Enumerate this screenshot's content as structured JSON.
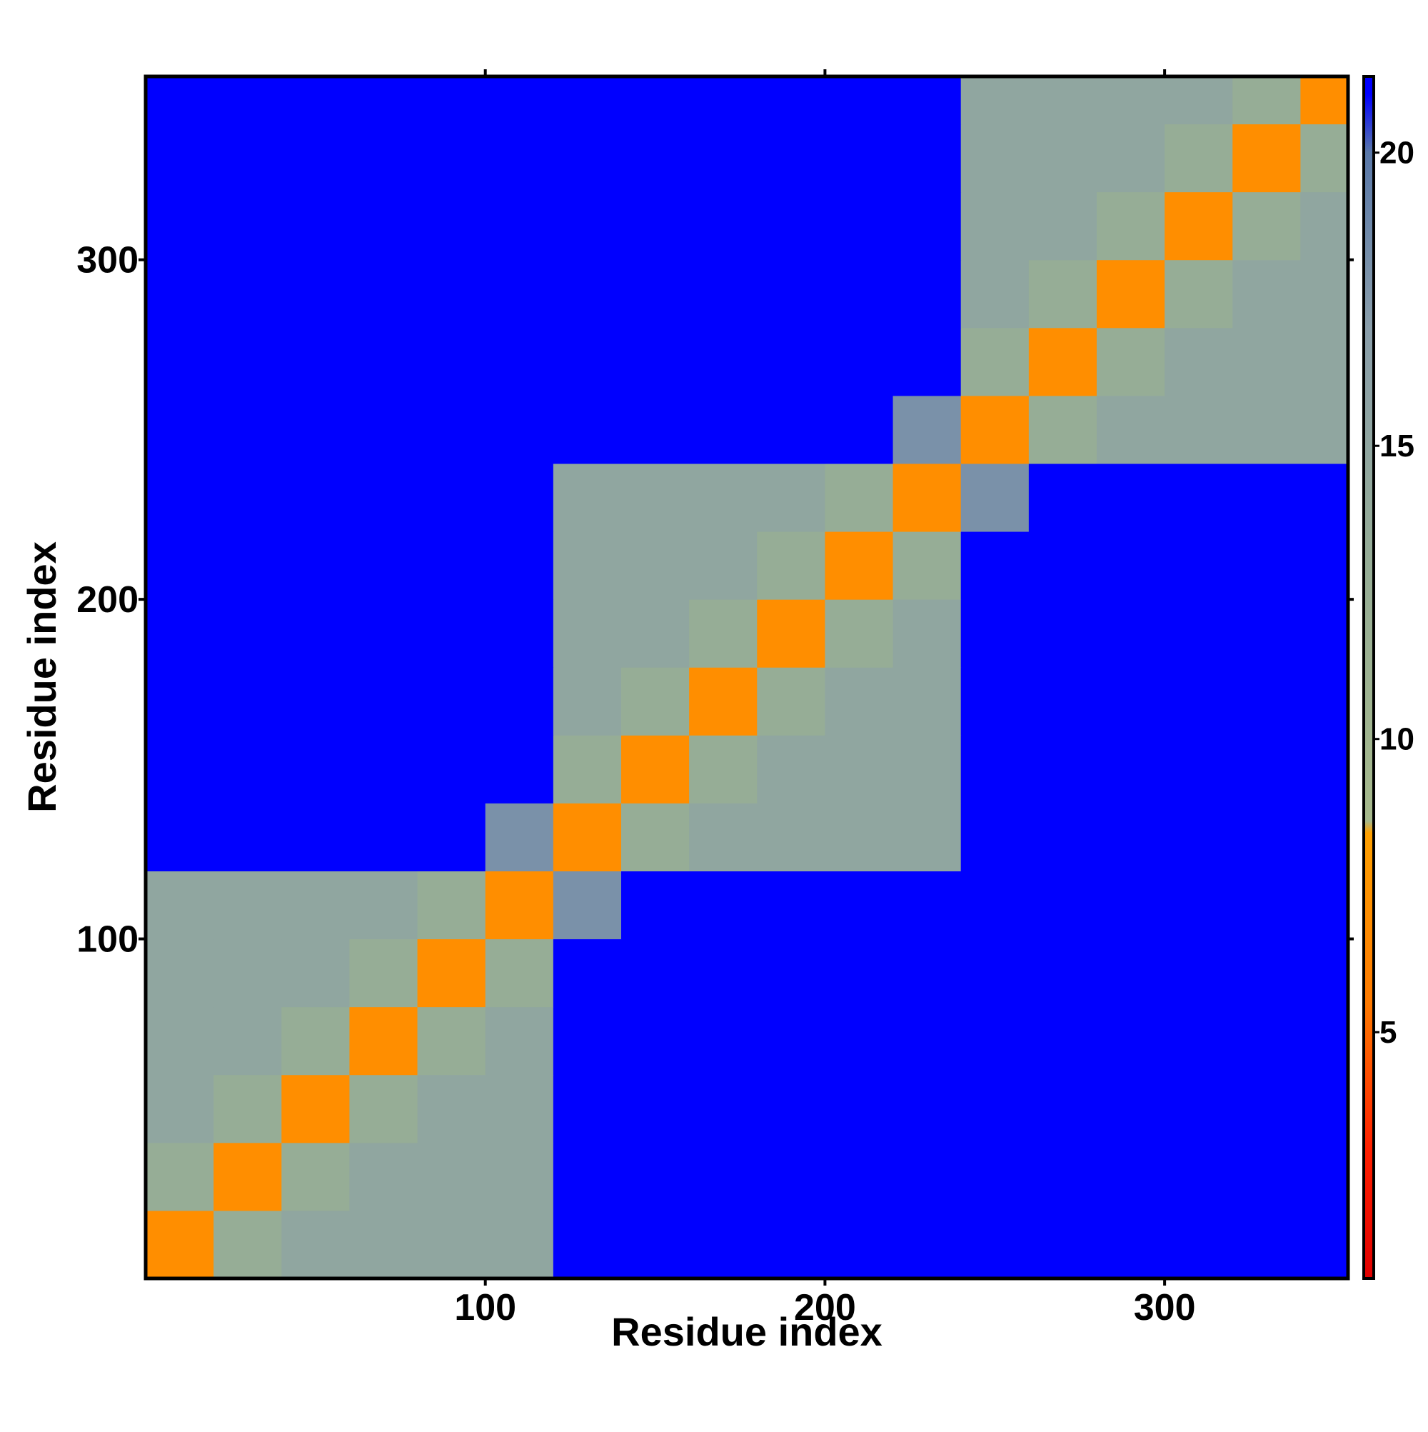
{
  "chart_data": {
    "type": "heatmap",
    "xlabel": "Residue index",
    "ylabel": "Residue index",
    "xlim": [
      0,
      354
    ],
    "ylim": [
      0,
      354
    ],
    "xticks": [
      100,
      200,
      300
    ],
    "yticks": [
      100,
      200,
      300
    ],
    "xbins": [
      0,
      20,
      40,
      60,
      80,
      100,
      120,
      140,
      160,
      180,
      200,
      220,
      240,
      260,
      280,
      300,
      320,
      340,
      354
    ],
    "ybins": [
      0,
      20,
      40,
      60,
      80,
      100,
      120,
      140,
      160,
      180,
      200,
      220,
      240,
      260,
      280,
      300,
      320,
      340,
      354
    ],
    "z": [
      [
        7,
        13,
        15,
        15,
        15,
        15,
        21,
        21,
        21,
        21,
        21,
        21,
        21,
        21,
        21,
        21,
        21,
        21
      ],
      [
        13,
        7,
        13,
        15,
        15,
        15,
        21,
        21,
        21,
        21,
        21,
        21,
        21,
        21,
        21,
        21,
        21,
        21
      ],
      [
        15,
        13,
        7,
        13,
        15,
        15,
        21,
        21,
        21,
        21,
        21,
        21,
        21,
        21,
        21,
        21,
        21,
        21
      ],
      [
        15,
        15,
        13,
        7,
        13,
        15,
        21,
        21,
        21,
        21,
        21,
        21,
        21,
        21,
        21,
        21,
        21,
        21
      ],
      [
        15,
        15,
        15,
        13,
        7,
        13,
        21,
        21,
        21,
        21,
        21,
        21,
        21,
        21,
        21,
        21,
        21,
        21
      ],
      [
        15,
        15,
        15,
        15,
        13,
        7,
        18,
        21,
        21,
        21,
        21,
        21,
        21,
        21,
        21,
        21,
        21,
        21
      ],
      [
        21,
        21,
        21,
        21,
        21,
        18,
        7,
        13,
        15,
        15,
        15,
        15,
        21,
        21,
        21,
        21,
        21,
        21
      ],
      [
        21,
        21,
        21,
        21,
        21,
        21,
        13,
        7,
        13,
        15,
        15,
        15,
        21,
        21,
        21,
        21,
        21,
        21
      ],
      [
        21,
        21,
        21,
        21,
        21,
        21,
        15,
        13,
        7,
        13,
        15,
        15,
        21,
        21,
        21,
        21,
        21,
        21
      ],
      [
        21,
        21,
        21,
        21,
        21,
        21,
        15,
        15,
        13,
        7,
        13,
        15,
        21,
        21,
        21,
        21,
        21,
        21
      ],
      [
        21,
        21,
        21,
        21,
        21,
        21,
        15,
        15,
        15,
        13,
        7,
        13,
        21,
        21,
        21,
        21,
        21,
        21
      ],
      [
        21,
        21,
        21,
        21,
        21,
        21,
        15,
        15,
        15,
        15,
        13,
        7,
        18,
        21,
        21,
        21,
        21,
        21
      ],
      [
        21,
        21,
        21,
        21,
        21,
        21,
        21,
        21,
        21,
        21,
        21,
        18,
        7,
        13,
        15,
        15,
        15,
        15
      ],
      [
        21,
        21,
        21,
        21,
        21,
        21,
        21,
        21,
        21,
        21,
        21,
        21,
        13,
        7,
        13,
        15,
        15,
        15
      ],
      [
        21,
        21,
        21,
        21,
        21,
        21,
        21,
        21,
        21,
        21,
        21,
        21,
        15,
        13,
        7,
        13,
        15,
        15
      ],
      [
        21,
        21,
        21,
        21,
        21,
        21,
        21,
        21,
        21,
        21,
        21,
        21,
        15,
        15,
        13,
        7,
        13,
        15
      ],
      [
        21,
        21,
        21,
        21,
        21,
        21,
        21,
        21,
        21,
        21,
        21,
        21,
        15,
        15,
        15,
        13,
        7,
        13
      ],
      [
        21,
        21,
        21,
        21,
        21,
        21,
        21,
        21,
        21,
        21,
        21,
        21,
        15,
        15,
        15,
        15,
        13,
        7
      ]
    ],
    "colorbar": {
      "lim": [
        0.8,
        21.3
      ],
      "ticks": [
        5,
        10,
        15,
        20
      ]
    },
    "colorscale": [
      [
        0.8,
        "#e00000"
      ],
      [
        3,
        "#ff2000"
      ],
      [
        5.5,
        "#ff7a00"
      ],
      [
        8.4,
        "#ffa000"
      ],
      [
        8.6,
        "#a6b98c"
      ],
      [
        13,
        "#96ad96"
      ],
      [
        17,
        "#8a9eaa"
      ],
      [
        20,
        "#5a78a8"
      ],
      [
        21,
        "#0000ff"
      ],
      [
        21.3,
        "#0000ff"
      ]
    ]
  }
}
